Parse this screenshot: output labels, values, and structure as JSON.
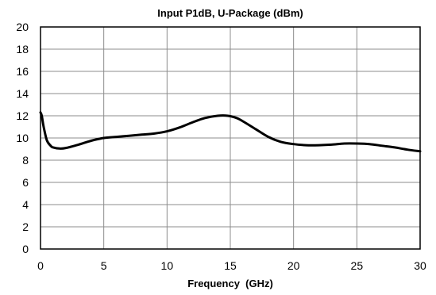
{
  "chart_data": {
    "type": "line",
    "title": "Input P1dB, U-Package (dBm)",
    "xlabel": "Frequency  (GHz)",
    "ylabel": "",
    "xlim": [
      0,
      30
    ],
    "ylim": [
      0,
      20
    ],
    "xticks": [
      0,
      5,
      10,
      15,
      20,
      25,
      30
    ],
    "yticks": [
      0,
      2,
      4,
      6,
      8,
      10,
      12,
      14,
      16,
      18,
      20
    ],
    "grid": true,
    "series": [
      {
        "color": "#000000",
        "x": [
          0,
          0.1,
          0.25,
          0.5,
          0.8,
          1,
          1.5,
          2,
          3,
          4,
          5,
          6,
          7,
          8,
          9,
          10,
          11,
          12,
          13,
          14,
          14.8,
          15.5,
          16,
          17,
          18,
          19,
          20,
          21,
          22,
          23,
          24,
          25,
          26,
          27,
          28,
          29,
          30
        ],
        "y": [
          12.3,
          12.0,
          11.0,
          9.8,
          9.3,
          9.15,
          9.05,
          9.1,
          9.4,
          9.75,
          10.0,
          10.1,
          10.2,
          10.3,
          10.4,
          10.6,
          10.95,
          11.4,
          11.8,
          12.0,
          12.0,
          11.8,
          11.5,
          10.8,
          10.1,
          9.65,
          9.45,
          9.35,
          9.35,
          9.4,
          9.5,
          9.5,
          9.45,
          9.3,
          9.15,
          8.95,
          8.8
        ]
      }
    ]
  }
}
